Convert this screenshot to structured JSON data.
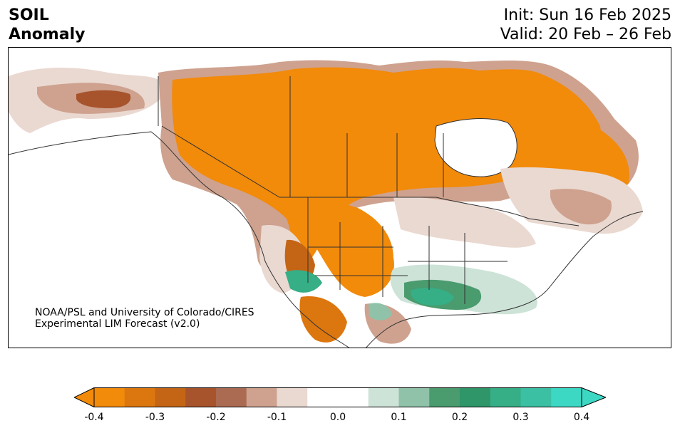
{
  "title": {
    "variable": "SOIL",
    "subtitle": "Anomaly",
    "init": "Init: Sun 16 Feb 2025",
    "valid": "Valid: 20 Feb – 26 Feb"
  },
  "credit": {
    "line1": "NOAA/PSL and University of Colorado/CIRES",
    "line2": "Experimental LIM Forecast (v2.0)"
  },
  "colorbar": {
    "colors": [
      "#f28a0a",
      "#dc760e",
      "#c46516",
      "#a7532c",
      "#ab6a52",
      "#cea28f",
      "#ead9d1",
      "#ffffff",
      "#ffffff",
      "#cde3d8",
      "#8fc2a9",
      "#4a9b6e",
      "#2e9669",
      "#36ae86",
      "#3bc0a4",
      "#3dd8c4"
    ],
    "ticks": [
      "-0.4",
      "-0.3",
      "-0.2",
      "-0.1",
      "0.0",
      "0.1",
      "0.2",
      "0.3",
      "0.4"
    ],
    "range": [
      -0.4,
      0.4
    ],
    "under_color": "#f28a0a",
    "over_color": "#3dd8c4"
  },
  "map": {
    "region": "North America",
    "colors": {
      "dry_strong": "#f28a0a",
      "dry_mid": "#c46516",
      "dry_weak": "#cea28f",
      "dry_faint": "#ead9d1",
      "wet_faint": "#cde3d8",
      "wet_mid": "#4a9b6e",
      "wet_strong": "#36ae86",
      "border": "#333333"
    }
  }
}
